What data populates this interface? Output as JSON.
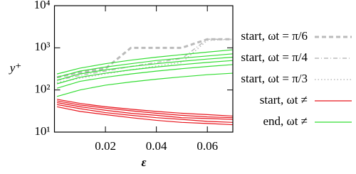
{
  "chart_data": {
    "type": "line",
    "x_label": "ε",
    "y_label": "y⁺",
    "y_log": true,
    "x": [
      0.001,
      0.01,
      0.02,
      0.03,
      0.04,
      0.05,
      0.06,
      0.07
    ],
    "xlim": [
      0,
      0.07
    ],
    "xticks": [
      0.02,
      0.04,
      0.06
    ],
    "ylim": [
      10,
      10000
    ],
    "yticks": [
      {
        "value": 10,
        "label": "10¹"
      },
      {
        "value": 100,
        "label": "10²"
      },
      {
        "value": 1000,
        "label": "10³"
      },
      {
        "value": 10000,
        "label": "10⁴"
      }
    ],
    "series": [
      {
        "name": "start, ωt = π/6",
        "color": "#bbbbbb",
        "dash": "6,4",
        "width": 3,
        "curves": [
          [
            200,
            260,
            320,
            1000,
            1000,
            1000,
            1600,
            1600
          ]
        ]
      },
      {
        "name": "start, ωt = π/4",
        "color": "#bbbbbb",
        "dash": "6,3,1,3",
        "width": 1.5,
        "curves": [
          [
            170,
            220,
            280,
            360,
            450,
            560,
            1600,
            1600
          ]
        ]
      },
      {
        "name": "start, ωt = π/3",
        "color": "#bbbbbb",
        "dash": "1.5,3",
        "width": 1.5,
        "curves": [
          [
            150,
            190,
            240,
            300,
            370,
            450,
            1500,
            1600
          ]
        ]
      },
      {
        "name": "start, ωt ≠",
        "color": "#e8141c",
        "dash": "none",
        "width": 1.2,
        "curves": [
          [
            60,
            48,
            40,
            35,
            31,
            28,
            26,
            24
          ],
          [
            55,
            44,
            37,
            32,
            28,
            25,
            23,
            22
          ],
          [
            50,
            40,
            33,
            28,
            25,
            22,
            21,
            20
          ],
          [
            45,
            36,
            29,
            25,
            22,
            20,
            18,
            17
          ],
          [
            40,
            31,
            26,
            22,
            19,
            17,
            16,
            15
          ]
        ]
      },
      {
        "name": "end, ωt ≠",
        "color": "#33dd33",
        "dash": "none",
        "width": 1.2,
        "curves": [
          [
            70,
            100,
            130,
            155,
            180,
            205,
            230,
            250
          ],
          [
            110,
            160,
            200,
            240,
            280,
            320,
            360,
            400
          ],
          [
            140,
            200,
            250,
            300,
            350,
            400,
            450,
            500
          ],
          [
            170,
            240,
            300,
            360,
            420,
            480,
            540,
            600
          ],
          [
            200,
            280,
            350,
            420,
            500,
            570,
            640,
            720
          ],
          [
            240,
            330,
            420,
            510,
            600,
            690,
            790,
            900
          ]
        ]
      }
    ]
  }
}
